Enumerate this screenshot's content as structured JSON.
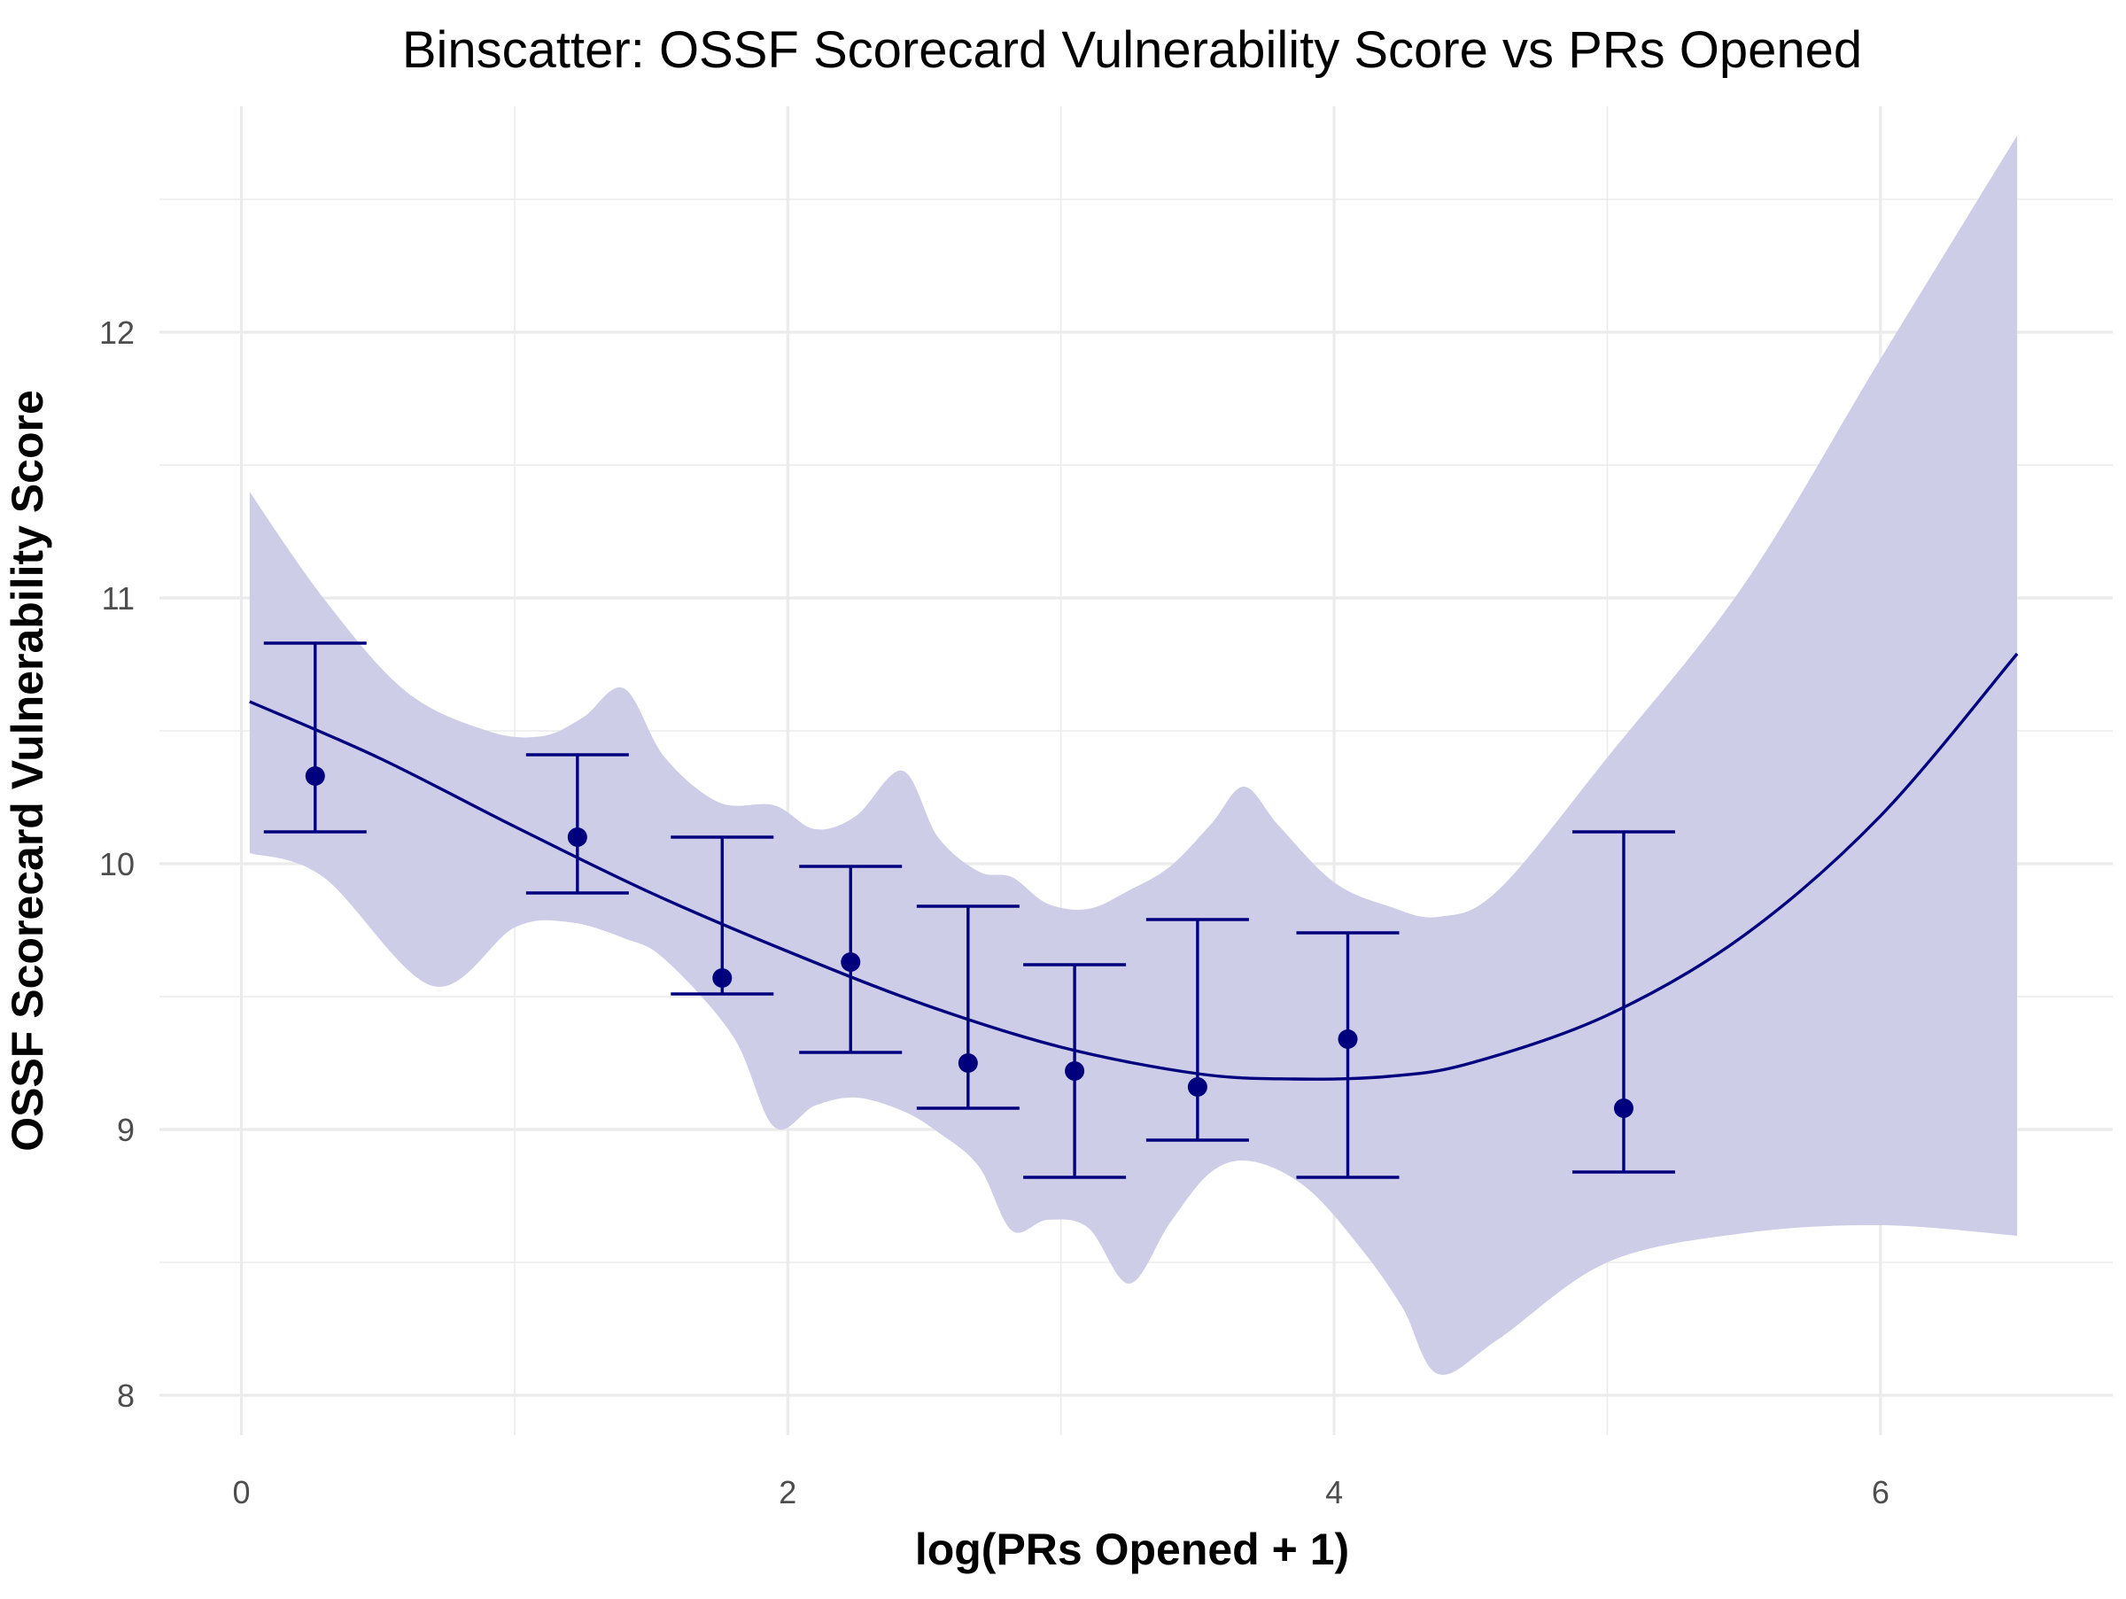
{
  "chart_data": {
    "type": "scatter",
    "title": "Binscatter: OSSF Scorecard Vulnerability Score vs PRs Opened",
    "xlabel": "log(PRs Opened + 1)",
    "ylabel": "OSSF Scorecard Vulnerability Score",
    "xlim": [
      -0.3,
      6.85
    ],
    "ylim": [
      7.85,
      12.85
    ],
    "x_ticks": [
      0,
      2,
      4,
      6
    ],
    "y_ticks": [
      8,
      9,
      10,
      11,
      12
    ],
    "x_tick_labels": [
      "0",
      "2",
      "4",
      "6"
    ],
    "y_tick_labels": [
      "8",
      "9",
      "10",
      "11",
      "12"
    ],
    "grid": true,
    "colors": {
      "point": "#00007f",
      "fit_line": "#00007f",
      "ribbon": "#cdcde8",
      "panel_background": "#ffffff",
      "grid": "#ebebeb"
    },
    "points": [
      {
        "x": 0.27,
        "y": 10.33,
        "ymin": 10.12,
        "ymax": 10.83
      },
      {
        "x": 1.23,
        "y": 10.1,
        "ymin": 9.89,
        "ymax": 10.41
      },
      {
        "x": 1.76,
        "y": 9.57,
        "ymin": 9.51,
        "ymax": 10.1
      },
      {
        "x": 2.23,
        "y": 9.63,
        "ymin": 9.29,
        "ymax": 9.99
      },
      {
        "x": 2.66,
        "y": 9.25,
        "ymin": 9.08,
        "ymax": 9.84
      },
      {
        "x": 3.05,
        "y": 9.22,
        "ymin": 8.82,
        "ymax": 9.62
      },
      {
        "x": 3.5,
        "y": 9.16,
        "ymin": 8.96,
        "ymax": 9.79
      },
      {
        "x": 4.05,
        "y": 9.34,
        "ymin": 8.82,
        "ymax": 9.74
      },
      {
        "x": 5.06,
        "y": 9.08,
        "ymin": 8.84,
        "ymax": 10.12
      }
    ],
    "fit_line": {
      "x": [
        0.03,
        0.5,
        1.0,
        1.5,
        2.0,
        2.5,
        3.0,
        3.5,
        3.85,
        4.2,
        4.5,
        5.0,
        5.5,
        6.0,
        6.5
      ],
      "y": [
        10.61,
        10.4,
        10.14,
        9.89,
        9.67,
        9.47,
        9.31,
        9.21,
        9.19,
        9.2,
        9.25,
        9.43,
        9.73,
        10.18,
        10.79
      ]
    },
    "ribbon": {
      "upper": {
        "x": [
          0.03,
          0.3,
          0.6,
          0.9,
          1.1,
          1.25,
          1.4,
          1.55,
          1.75,
          1.95,
          2.1,
          2.25,
          2.42,
          2.55,
          2.7,
          2.82,
          2.95,
          3.1,
          3.25,
          3.4,
          3.55,
          3.67,
          3.8,
          4.0,
          4.2,
          4.38,
          4.6,
          5.0,
          5.5,
          6.0,
          6.5
        ],
        "y": [
          11.4,
          11.0,
          10.65,
          10.5,
          10.48,
          10.55,
          10.66,
          10.4,
          10.23,
          10.22,
          10.13,
          10.18,
          10.35,
          10.1,
          9.97,
          9.95,
          9.85,
          9.83,
          9.9,
          9.99,
          10.15,
          10.29,
          10.14,
          9.93,
          9.84,
          9.8,
          9.9,
          10.4,
          11.05,
          11.9,
          12.74
        ]
      },
      "lower": {
        "x": [
          0.03,
          0.3,
          0.7,
          1.0,
          1.2,
          1.4,
          1.55,
          1.8,
          1.95,
          2.1,
          2.25,
          2.42,
          2.55,
          2.7,
          2.82,
          2.95,
          3.1,
          3.25,
          3.4,
          3.55,
          3.7,
          3.9,
          4.1,
          4.25,
          4.38,
          4.6,
          5.0,
          5.5,
          6.0,
          6.5
        ],
        "y": [
          10.04,
          9.95,
          9.54,
          9.76,
          9.78,
          9.72,
          9.64,
          9.35,
          9.01,
          9.09,
          9.12,
          9.07,
          8.99,
          8.86,
          8.62,
          8.66,
          8.63,
          8.42,
          8.65,
          8.84,
          8.88,
          8.78,
          8.55,
          8.33,
          8.08,
          8.21,
          8.5,
          8.61,
          8.64,
          8.6
        ]
      }
    }
  }
}
